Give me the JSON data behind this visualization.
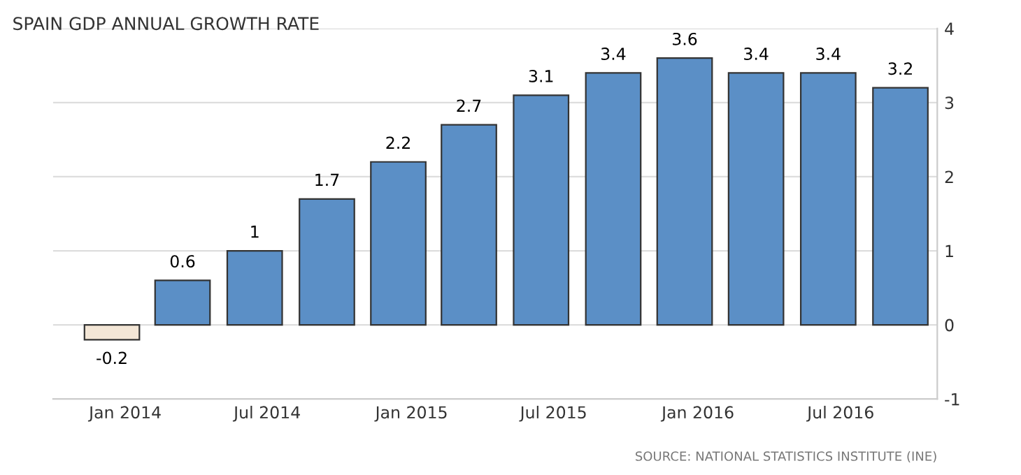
{
  "chart_data": {
    "type": "bar",
    "title": "SPAIN GDP ANNUAL GROWTH RATE",
    "x": [
      "2013-12-15",
      "2014-03-15",
      "2014-06-15",
      "2014-09-15",
      "2014-12-15",
      "2015-03-15",
      "2015-06-15",
      "2015-09-15",
      "2015-12-15",
      "2016-03-15",
      "2016-06-15",
      "2016-09-15"
    ],
    "values": [
      -0.2,
      0.6,
      1,
      1.7,
      2.2,
      2.7,
      3.1,
      3.4,
      3.6,
      3.4,
      3.4,
      3.2
    ],
    "colors": [
      "#f3e6d6",
      "#5b8fc6",
      "#5b8fc6",
      "#5b8fc6",
      "#5b8fc6",
      "#5b8fc6",
      "#5b8fc6",
      "#5b8fc6",
      "#5b8fc6",
      "#5b8fc6",
      "#5b8fc6",
      "#5b8fc6"
    ],
    "data_labels": true,
    "xlim": [
      "2013-10",
      "2016-11"
    ],
    "xticks": [
      {
        "value": "2014-01",
        "label": "Jan 2014"
      },
      {
        "value": "2014-07",
        "label": "Jul 2014"
      },
      {
        "value": "2015-01",
        "label": "Jan 2015"
      },
      {
        "value": "2015-07",
        "label": "Jul 2015"
      },
      {
        "value": "2016-01",
        "label": "Jan 2016"
      },
      {
        "value": "2016-07",
        "label": "Jul 2016"
      }
    ],
    "ylim": [
      -1,
      4
    ],
    "yticks": [
      -1,
      0,
      1,
      2,
      3,
      4
    ],
    "grid": "y",
    "annotations": [
      "SOURCE: NATIONAL STATISTICS INSTITUTE (INE)"
    ]
  }
}
